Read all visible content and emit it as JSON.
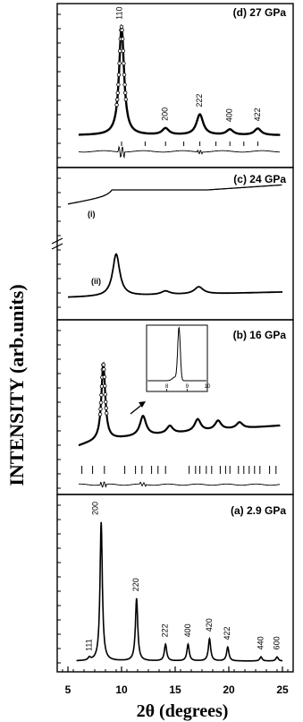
{
  "figure": {
    "ylabel": "INTENSITY (arb.units)",
    "xlabel": "2θ (degrees)",
    "x_ticks": [
      5,
      10,
      15,
      20,
      25
    ]
  },
  "chart_data": [
    {
      "type": "line",
      "panel_label": "(d) 27 GPa",
      "xlim": [
        4,
        26
      ],
      "peaks": [
        {
          "hkl": "110",
          "x": 10.0,
          "y": 1.0
        },
        {
          "hkl": "200",
          "x": 14.1,
          "y": 0.06
        },
        {
          "hkl": "222",
          "x": 17.3,
          "y": 0.19
        },
        {
          "hkl": "400",
          "x": 20.1,
          "y": 0.05
        },
        {
          "hkl": "422",
          "x": 22.7,
          "y": 0.06
        }
      ],
      "reflection_ticks": [
        10.0,
        12.2,
        14.1,
        15.8,
        17.3,
        18.8,
        20.1,
        21.4,
        22.7
      ]
    },
    {
      "type": "line",
      "panel_label": "(c) 24 GPa",
      "xlim": [
        4,
        26
      ],
      "series": [
        {
          "name": "(i)",
          "peaks": [
            {
              "x": 9.8,
              "y": 0.55
            },
            {
              "x": 17.2,
              "y": 0.1
            }
          ]
        },
        {
          "name": "(ii)",
          "peaks": [
            {
              "x": 9.5,
              "y": 0.8
            },
            {
              "x": 14.1,
              "y": 0.08
            },
            {
              "x": 17.2,
              "y": 0.12
            }
          ]
        }
      ]
    },
    {
      "type": "line",
      "panel_label": "(b) 16 GPa",
      "xlim": [
        4,
        26
      ],
      "peaks": [
        {
          "x": 8.3,
          "y": 1.0
        },
        {
          "x": 12.0,
          "y": 0.26
        },
        {
          "x": 14.5,
          "y": 0.1
        },
        {
          "x": 17.1,
          "y": 0.16
        },
        {
          "x": 19.0,
          "y": 0.12
        },
        {
          "x": 21.0,
          "y": 0.08
        }
      ],
      "reflection_ticks": [
        6.3,
        7.3,
        8.4,
        10.3,
        11.3,
        11.9,
        12.8,
        13.4,
        14.1,
        16.3,
        16.9,
        17.3,
        17.9,
        18.4,
        19.2,
        19.7,
        20.1,
        20.9,
        21.4,
        21.9,
        22.4,
        22.9,
        23.8,
        24.4
      ],
      "inset": {
        "xlim": [
          7,
          10
        ],
        "x_ticks": [
          8,
          9,
          10
        ],
        "peak_x": 8.6
      }
    },
    {
      "type": "line",
      "panel_label": "(a) 2.9 GPa",
      "xlim": [
        4,
        26
      ],
      "peaks": [
        {
          "hkl": "111",
          "x": 7.0,
          "y": 0.02
        },
        {
          "hkl": "200",
          "x": 8.1,
          "y": 1.0
        },
        {
          "hkl": "220",
          "x": 11.4,
          "y": 0.45
        },
        {
          "hkl": "222",
          "x": 14.1,
          "y": 0.12
        },
        {
          "hkl": "400",
          "x": 16.2,
          "y": 0.12
        },
        {
          "hkl": "420",
          "x": 18.2,
          "y": 0.16
        },
        {
          "hkl": "422",
          "x": 19.9,
          "y": 0.1
        },
        {
          "hkl": "440",
          "x": 23.0,
          "y": 0.03
        },
        {
          "hkl": "600",
          "x": 24.5,
          "y": 0.03
        }
      ]
    }
  ]
}
